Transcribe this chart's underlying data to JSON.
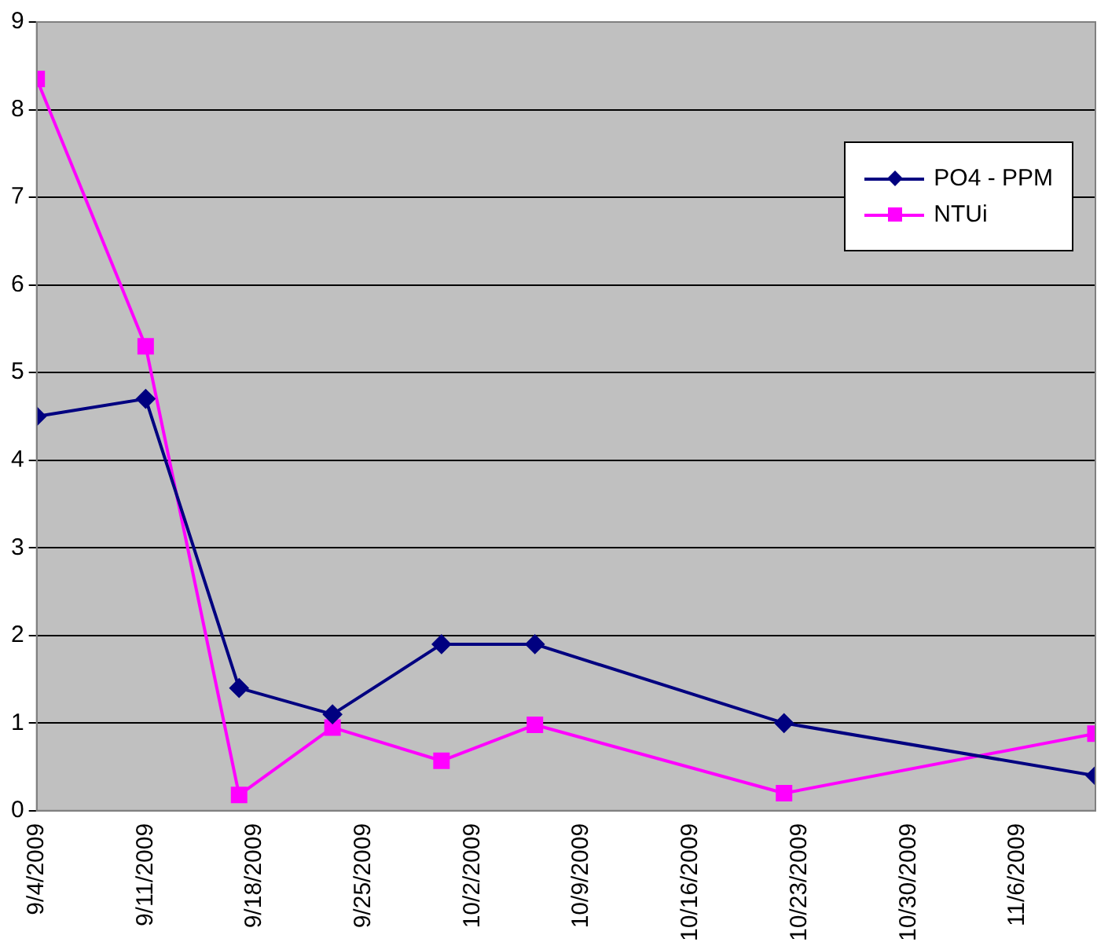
{
  "chart_data": {
    "type": "line",
    "x": [
      "2009-09-04",
      "2009-09-11",
      "2009-09-17",
      "2009-09-23",
      "2009-09-30",
      "2009-10-06",
      "2009-10-22",
      "2009-11-11"
    ],
    "series": [
      {
        "name": "PO4 - PPM",
        "color": "#000080",
        "marker": "diamond",
        "values": [
          4.5,
          4.7,
          1.4,
          1.1,
          1.9,
          1.9,
          1.0,
          0.4
        ]
      },
      {
        "name": "NTUi",
        "color": "#ff00ff",
        "marker": "square",
        "values": [
          8.35,
          5.3,
          0.18,
          0.95,
          0.57,
          0.98,
          0.2,
          0.88
        ]
      }
    ],
    "xlim": [
      "2009-09-04",
      "2009-11-11"
    ],
    "xticks": [
      {
        "value": "2009-09-04",
        "label": "9/4/2009"
      },
      {
        "value": "2009-09-11",
        "label": "9/11/2009"
      },
      {
        "value": "2009-09-18",
        "label": "9/18/2009"
      },
      {
        "value": "2009-09-25",
        "label": "9/25/2009"
      },
      {
        "value": "2009-10-02",
        "label": "10/2/2009"
      },
      {
        "value": "2009-10-09",
        "label": "10/9/2009"
      },
      {
        "value": "2009-10-16",
        "label": "10/16/2009"
      },
      {
        "value": "2009-10-23",
        "label": "10/23/2009"
      },
      {
        "value": "2009-10-30",
        "label": "10/30/2009"
      },
      {
        "value": "2009-11-06",
        "label": "11/6/2009"
      }
    ],
    "ylim": [
      0,
      9
    ],
    "yticks": [
      0,
      1,
      2,
      3,
      4,
      5,
      6,
      7,
      8,
      9
    ],
    "grid": "y",
    "legend": "top right",
    "line_style": "solid"
  }
}
